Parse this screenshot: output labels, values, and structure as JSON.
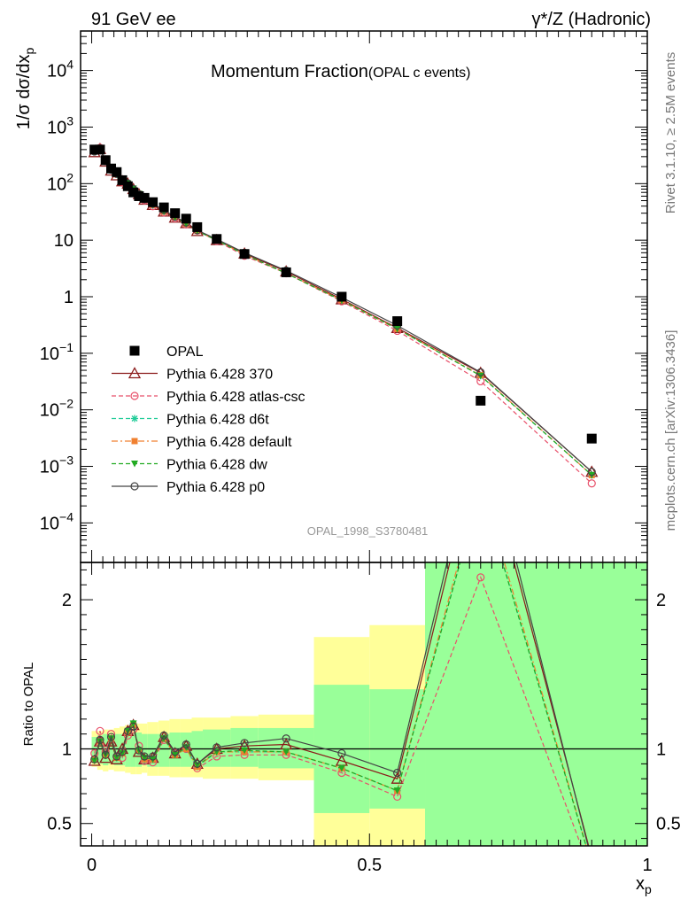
{
  "header": {
    "left": "91 GeV ee",
    "right": "γ*/Z (Hadronic)"
  },
  "side_labels": {
    "rivet": "Rivet 3.1.10, ≥ 2.5M events",
    "mcplots": "mcplots.cern.ch [arXiv:1306.3436]"
  },
  "chart_data": [
    {
      "type": "scatter",
      "panel": "main",
      "title": "Momentum Fraction",
      "subtitle": "(OPAL c events)",
      "ylabel": "1/σ dσ/dx_p",
      "yscale": "log",
      "ylim": [
        2e-05,
        50000
      ],
      "xlim": [
        -0.02,
        1.0
      ],
      "y_ticks": [
        {
          "v": 0.0001,
          "label": "10^-4"
        },
        {
          "v": 0.001,
          "label": "10^-3"
        },
        {
          "v": 0.01,
          "label": "10^-2"
        },
        {
          "v": 0.1,
          "label": "10^-1"
        },
        {
          "v": 1,
          "label": "1"
        },
        {
          "v": 10,
          "label": "10"
        },
        {
          "v": 100,
          "label": "10^2"
        },
        {
          "v": 1000,
          "label": "10^3"
        },
        {
          "v": 10000,
          "label": "10^4"
        }
      ],
      "watermark": "OPAL_1998_S3780481",
      "legend_position": "middle-left",
      "x": [
        0.005,
        0.015,
        0.025,
        0.035,
        0.045,
        0.055,
        0.065,
        0.075,
        0.085,
        0.095,
        0.11,
        0.13,
        0.15,
        0.17,
        0.19,
        0.225,
        0.275,
        0.35,
        0.45,
        0.55,
        0.7,
        0.9
      ],
      "series": [
        {
          "name": "OPAL",
          "color": "#000000",
          "marker": "square",
          "line": "none",
          "values": [
            400,
            400,
            260,
            185,
            160,
            115,
            90,
            70,
            60,
            56,
            47,
            38,
            30,
            24,
            17,
            10.5,
            5.7,
            2.7,
            1.0,
            0.37,
            0.0145,
            0.0031
          ]
        },
        {
          "name": "Pythia 6.428 370",
          "color": "#8b1a1a",
          "marker": "triangle-open",
          "line": "solid",
          "values": [
            360,
            410,
            245,
            170,
            140,
            110,
            100,
            80,
            65,
            52,
            42,
            32,
            25,
            20,
            14.5,
            10,
            5.8,
            2.8,
            0.9,
            0.28,
            0.045,
            0.0008
          ]
        },
        {
          "name": "Pythia 6.428 atlas-csc",
          "color": "#e8506a",
          "marker": "circle-open",
          "line": "dashed",
          "values": [
            390,
            430,
            255,
            180,
            148,
            108,
            98,
            79,
            64,
            51,
            40,
            31,
            24.5,
            19,
            14.8,
            9.7,
            5.3,
            2.6,
            0.83,
            0.25,
            0.032,
            0.0005
          ]
        },
        {
          "name": "Pythia 6.428 d6t",
          "color": "#22cc99",
          "marker": "star",
          "line": "dashed",
          "values": [
            370,
            410,
            250,
            175,
            145,
            112,
            100,
            82,
            66,
            52,
            42,
            32,
            25.5,
            19.5,
            14.6,
            10,
            5.6,
            2.6,
            0.86,
            0.27,
            0.04,
            0.0007
          ]
        },
        {
          "name": "Pythia 6.428 default",
          "color": "#f08030",
          "marker": "square-filled",
          "line": "dashdot",
          "values": [
            372,
            412,
            251,
            176,
            146,
            112,
            101,
            81,
            66,
            52,
            42,
            32,
            25.4,
            19.5,
            14.6,
            10,
            5.6,
            2.6,
            0.87,
            0.27,
            0.041,
            0.0007
          ]
        },
        {
          "name": "Pythia 6.428 dw",
          "color": "#22aa22",
          "marker": "triangle-down",
          "line": "dashed",
          "values": [
            368,
            412,
            249,
            175,
            145,
            112,
            101,
            82,
            66,
            52,
            42,
            32,
            25.5,
            19.6,
            14.6,
            10,
            5.6,
            2.6,
            0.86,
            0.27,
            0.04,
            0.0007
          ]
        },
        {
          "name": "Pythia 6.428 p0",
          "color": "#444444",
          "marker": "circle-open",
          "line": "solid",
          "values": [
            370,
            420,
            250,
            176,
            150,
            114,
            101,
            80,
            65,
            53,
            44,
            34,
            26,
            20.5,
            15,
            10.4,
            6,
            2.9,
            0.97,
            0.31,
            0.046,
            0.0008
          ]
        }
      ]
    },
    {
      "type": "line",
      "panel": "ratio",
      "ylabel": "Ratio to OPAL",
      "xlabel": "x_p",
      "ylim": [
        0.35,
        2.25
      ],
      "xlim": [
        -0.02,
        1.0
      ],
      "y_ticks": [
        0.5,
        1,
        2
      ],
      "x_ticks": [
        0,
        0.5,
        1
      ],
      "x_tick_labels": [
        "0",
        "0.5",
        "1"
      ],
      "reference_line": 1,
      "bands": [
        {
          "x0": 0.0,
          "x1": 0.01,
          "green": [
            0.92,
            1.08
          ],
          "yellow": [
            0.88,
            1.12
          ]
        },
        {
          "x0": 0.01,
          "x1": 0.02,
          "green": [
            0.9,
            1.09
          ],
          "yellow": [
            0.86,
            1.12
          ]
        },
        {
          "x0": 0.02,
          "x1": 0.03,
          "green": [
            0.89,
            1.1
          ],
          "yellow": [
            0.85,
            1.13
          ]
        },
        {
          "x0": 0.03,
          "x1": 0.04,
          "green": [
            0.9,
            1.09
          ],
          "yellow": [
            0.86,
            1.13
          ]
        },
        {
          "x0": 0.04,
          "x1": 0.05,
          "green": [
            0.89,
            1.1
          ],
          "yellow": [
            0.85,
            1.14
          ]
        },
        {
          "x0": 0.05,
          "x1": 0.06,
          "green": [
            0.89,
            1.1
          ],
          "yellow": [
            0.85,
            1.15
          ]
        },
        {
          "x0": 0.06,
          "x1": 0.07,
          "green": [
            0.88,
            1.11
          ],
          "yellow": [
            0.84,
            1.16
          ]
        },
        {
          "x0": 0.07,
          "x1": 0.08,
          "green": [
            0.88,
            1.11
          ],
          "yellow": [
            0.83,
            1.17
          ]
        },
        {
          "x0": 0.08,
          "x1": 0.09,
          "green": [
            0.88,
            1.11
          ],
          "yellow": [
            0.83,
            1.17
          ]
        },
        {
          "x0": 0.09,
          "x1": 0.1,
          "green": [
            0.89,
            1.1
          ],
          "yellow": [
            0.84,
            1.17
          ]
        },
        {
          "x0": 0.1,
          "x1": 0.12,
          "green": [
            0.88,
            1.1
          ],
          "yellow": [
            0.82,
            1.18
          ]
        },
        {
          "x0": 0.12,
          "x1": 0.14,
          "green": [
            0.88,
            1.1
          ],
          "yellow": [
            0.82,
            1.19
          ]
        },
        {
          "x0": 0.14,
          "x1": 0.16,
          "green": [
            0.88,
            1.11
          ],
          "yellow": [
            0.81,
            1.2
          ]
        },
        {
          "x0": 0.16,
          "x1": 0.18,
          "green": [
            0.88,
            1.11
          ],
          "yellow": [
            0.81,
            1.2
          ]
        },
        {
          "x0": 0.18,
          "x1": 0.2,
          "green": [
            0.89,
            1.12
          ],
          "yellow": [
            0.81,
            1.21
          ]
        },
        {
          "x0": 0.2,
          "x1": 0.25,
          "green": [
            0.88,
            1.13
          ],
          "yellow": [
            0.8,
            1.21
          ]
        },
        {
          "x0": 0.25,
          "x1": 0.3,
          "green": [
            0.88,
            1.14
          ],
          "yellow": [
            0.8,
            1.22
          ]
        },
        {
          "x0": 0.3,
          "x1": 0.4,
          "green": [
            0.87,
            1.14
          ],
          "yellow": [
            0.79,
            1.23
          ]
        },
        {
          "x0": 0.4,
          "x1": 0.5,
          "green": [
            0.57,
            1.43
          ],
          "yellow": [
            0.2,
            1.75
          ]
        },
        {
          "x0": 0.5,
          "x1": 0.6,
          "green": [
            0.6,
            1.4
          ],
          "yellow": [
            0.2,
            1.83
          ]
        },
        {
          "x0": 0.6,
          "x1": 1.0,
          "green": [
            0.0,
            3.0
          ],
          "yellow": [
            0.0,
            3.0
          ]
        }
      ],
      "series": [
        {
          "name": "Pythia 6.428 370",
          "values": [
            0.92,
            1.05,
            0.94,
            1.05,
            0.93,
            1.0,
            1.12,
            1.16,
            0.98,
            0.93,
            0.94,
            1.08,
            0.97,
            1.02,
            0.9,
            1.0,
            1.02,
            1.03,
            0.92,
            0.8,
            3.1,
            0.27
          ]
        },
        {
          "name": "Pythia 6.428 atlas-csc",
          "values": [
            0.97,
            1.12,
            0.98,
            1.1,
            0.95,
            0.94,
            1.09,
            1.13,
            1.02,
            0.92,
            0.91,
            1.06,
            0.97,
            1.0,
            0.87,
            0.95,
            0.96,
            0.96,
            0.84,
            0.68,
            2.15,
            0.16
          ]
        },
        {
          "name": "Pythia 6.428 d6t",
          "values": [
            0.93,
            1.05,
            0.96,
            1.07,
            0.94,
            0.97,
            1.11,
            1.17,
            0.99,
            0.93,
            0.93,
            1.07,
            0.96,
            1.0,
            0.88,
            0.98,
            0.98,
            0.98,
            0.87,
            0.72,
            2.75,
            0.22
          ]
        },
        {
          "name": "Pythia 6.428 default",
          "values": [
            0.93,
            1.05,
            0.96,
            1.07,
            0.94,
            0.97,
            1.11,
            1.16,
            0.99,
            0.93,
            0.93,
            1.07,
            0.96,
            1.0,
            0.88,
            0.98,
            0.98,
            0.98,
            0.87,
            0.72,
            2.8,
            0.22
          ]
        },
        {
          "name": "Pythia 6.428 dw",
          "values": [
            0.92,
            1.05,
            0.96,
            1.07,
            0.94,
            0.97,
            1.12,
            1.17,
            0.99,
            0.94,
            0.93,
            1.07,
            0.96,
            1.01,
            0.89,
            0.98,
            0.99,
            0.98,
            0.87,
            0.72,
            2.75,
            0.22
          ]
        },
        {
          "name": "Pythia 6.428 p0",
          "values": [
            0.93,
            1.06,
            0.96,
            1.08,
            0.95,
            0.98,
            1.12,
            1.15,
            0.99,
            0.95,
            0.95,
            1.09,
            0.98,
            1.03,
            0.9,
            1.01,
            1.04,
            1.07,
            0.97,
            0.84,
            3.2,
            0.25
          ]
        }
      ]
    }
  ]
}
